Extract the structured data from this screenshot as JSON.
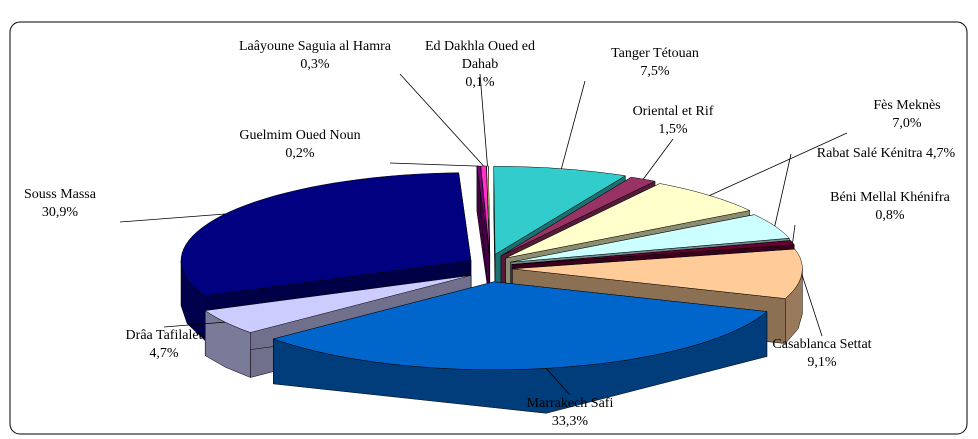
{
  "chart_data": {
    "type": "pie",
    "categories": [
      "Laâyoune Saguia al Hamra",
      "Ed Dakhla Oued ed Dahab",
      "Tanger Tétouan",
      "Oriental et Rif",
      "Fès Meknès",
      "Rabat Salé Kénitra",
      "Béni Mellal Khénifra",
      "Casablanca Settat",
      "Marrakech Safi",
      "Drâa Tafilalet",
      "Souss Massa",
      "Guelmim Oued Noun"
    ],
    "values": [
      0.3,
      0.1,
      7.5,
      1.5,
      7.0,
      4.7,
      0.8,
      9.1,
      33.3,
      4.7,
      30.9,
      0.2
    ],
    "value_labels": [
      "0,3%",
      "0,1%",
      "7,5%",
      "1,5%",
      "7,0%",
      "4,7%",
      "0,8%",
      "9,1%",
      "33,3%",
      "4,7%",
      "30,9%",
      "0,2%"
    ],
    "colors": [
      "#ff33cc",
      "#ffff99",
      "#33cccc",
      "#993366",
      "#ffffcc",
      "#ccffff",
      "#660033",
      "#ffcc99",
      "#0066cc",
      "#ccccff",
      "#000080",
      "#800080"
    ]
  }
}
